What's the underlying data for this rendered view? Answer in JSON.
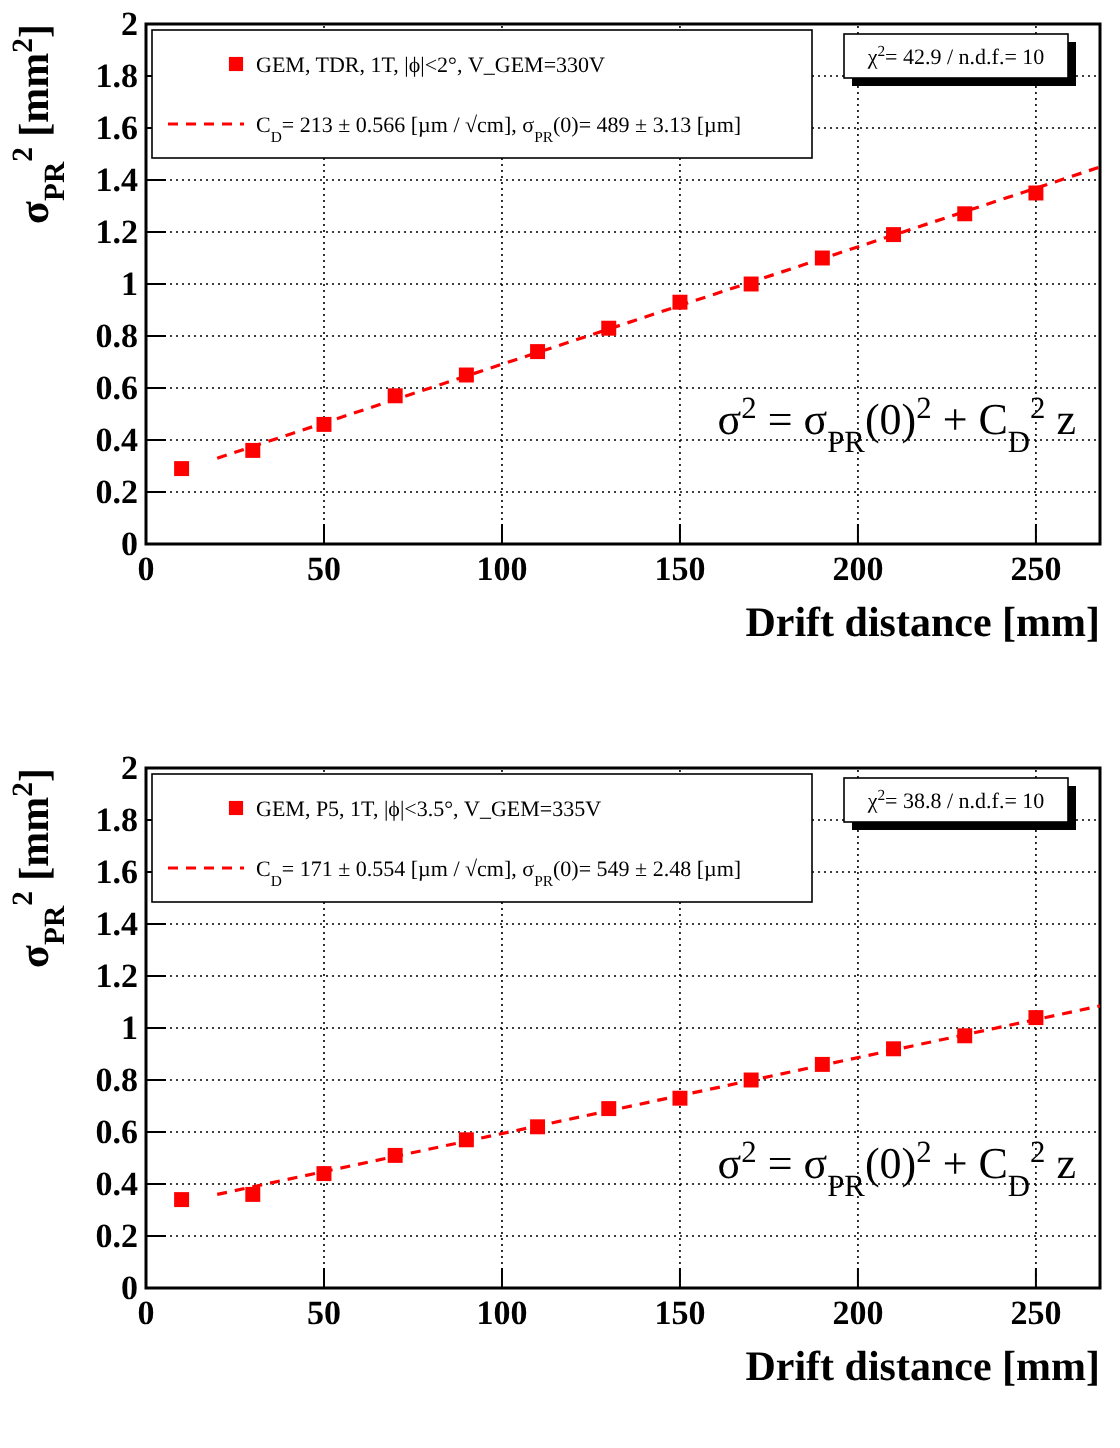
{
  "chart_data": [
    {
      "type": "scatter",
      "xlabel": "Drift distance [mm]",
      "ylabel": "σ$_{PR}$$^{2}$ [mm$^{2}$]",
      "xlim": [
        0,
        268
      ],
      "xticks": [
        0,
        50,
        100,
        150,
        200,
        250
      ],
      "ylim": [
        0,
        2
      ],
      "yticks": [
        0,
        0.2,
        0.4,
        0.6,
        0.8,
        1,
        1.2,
        1.4,
        1.6,
        1.8,
        2
      ],
      "grid": true,
      "legend": "top left",
      "annotations": [
        "χ$^{2}$= 42.9  /  n.d.f.=   10",
        "σ$^{2}$ = σ$_{PR}$(0)$^{2}$ + C$_{D}$$^{2}$ z"
      ],
      "series": [
        {
          "name": "GEM, TDR, 1T, |ϕ|<2°, V_GEM=330V",
          "color": "#ff0000",
          "marker": "square",
          "x": [
            10,
            30,
            50,
            70,
            90,
            110,
            130,
            150,
            170,
            190,
            210,
            230,
            250
          ],
          "values": [
            0.29,
            0.36,
            0.46,
            0.57,
            0.65,
            0.74,
            0.83,
            0.93,
            1.0,
            1.1,
            1.19,
            1.27,
            1.35
          ]
        },
        {
          "type": "line",
          "name": "C$_{D}$=  213 ± 0.566 [µm / √cm],  σ$_{PR}$(0)=   489 ±  3.13 [µm]",
          "color": "#ff0000",
          "line_style": "dashed",
          "x": [
            20,
            268
          ],
          "values": [
            0.33,
            1.45
          ]
        }
      ]
    },
    {
      "type": "scatter",
      "xlabel": "Drift distance [mm]",
      "ylabel": "σ$_{PR}$$^{2}$ [mm$^{2}$]",
      "xlim": [
        0,
        268
      ],
      "xticks": [
        0,
        50,
        100,
        150,
        200,
        250
      ],
      "ylim": [
        0,
        2
      ],
      "yticks": [
        0,
        0.2,
        0.4,
        0.6,
        0.8,
        1,
        1.2,
        1.4,
        1.6,
        1.8,
        2
      ],
      "grid": true,
      "legend": "top left",
      "annotations": [
        "χ$^{2}$= 38.8  /  n.d.f.=   10",
        "σ$^{2}$ = σ$_{PR}$(0)$^{2}$ + C$_{D}$$^{2}$ z"
      ],
      "series": [
        {
          "name": "GEM, P5, 1T, |ϕ|<3.5°, V_GEM=335V",
          "color": "#ff0000",
          "marker": "square",
          "x": [
            10,
            30,
            50,
            70,
            90,
            110,
            130,
            150,
            170,
            190,
            210,
            230,
            250
          ],
          "values": [
            0.34,
            0.36,
            0.44,
            0.51,
            0.57,
            0.62,
            0.69,
            0.73,
            0.8,
            0.86,
            0.92,
            0.97,
            1.04
          ]
        },
        {
          "type": "line",
          "name": "C$_{D}$=  171 ± 0.554 [µm / √cm],  σ$_{PR}$(0)=   549 ±  2.48 [µm]",
          "color": "#ff0000",
          "line_style": "dashed",
          "x": [
            20,
            268
          ],
          "values": [
            0.36,
            1.085
          ]
        }
      ]
    }
  ]
}
